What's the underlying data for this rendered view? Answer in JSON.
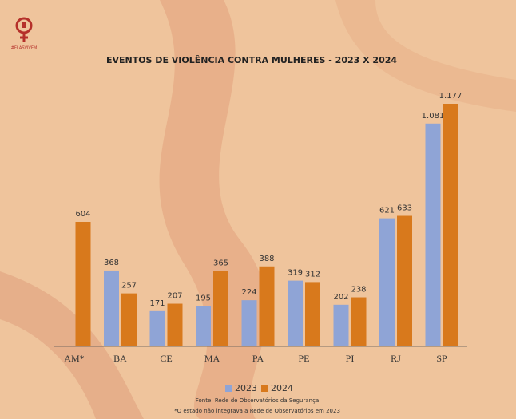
{
  "logo": "#ELASVIVEM",
  "chart_data": {
    "type": "bar",
    "title": "EVENTOS DE VIOLÊNCIA CONTRA MULHERES - 2023 X 2024",
    "categories": [
      "AM*",
      "BA",
      "CE",
      "MA",
      "PA",
      "PE",
      "PI",
      "RJ",
      "SP"
    ],
    "series": [
      {
        "name": "2023",
        "color": "#8fa4d6",
        "values": [
          null,
          368,
          171,
          195,
          224,
          319,
          202,
          621,
          1081
        ],
        "value_labels": [
          null,
          "368",
          "171",
          "195",
          "224",
          "319",
          "202",
          "621",
          "1.081"
        ]
      },
      {
        "name": "2024",
        "color": "#d8791c",
        "values": [
          604,
          257,
          207,
          365,
          388,
          312,
          238,
          633,
          1177
        ],
        "value_labels": [
          "604",
          "257",
          "207",
          "365",
          "388",
          "312",
          "238",
          "633",
          "1.177"
        ]
      }
    ],
    "source": "Fonte: Rede de Observatórios da Segurança",
    "note": "*O estado não integrava a Rede de Observatórios em 2023"
  }
}
